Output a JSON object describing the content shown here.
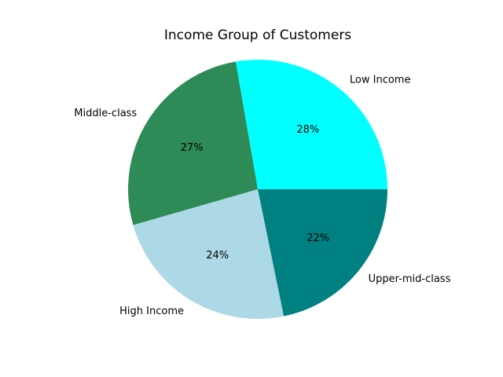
{
  "chart_data": {
    "type": "pie",
    "title": "Income Group of Customers",
    "categories": [
      "Low Income",
      "Middle-class",
      "High Income",
      "Upper-mid-class"
    ],
    "values": [
      28,
      27,
      24,
      22
    ],
    "percent_labels": [
      "28%",
      "27%",
      "24%",
      "22%"
    ],
    "colors": [
      "#00ffff",
      "#2e8b57",
      "#add8e6",
      "#008080"
    ],
    "start_angle": 0,
    "direction": "counterclockwise",
    "legend": "none"
  }
}
